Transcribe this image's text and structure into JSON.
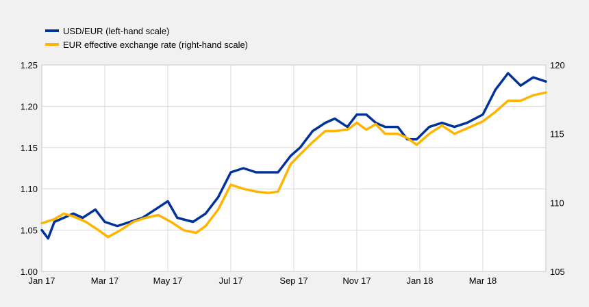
{
  "chart_data": {
    "type": "line",
    "title": "",
    "xlabel": "",
    "ylabel_left": "",
    "ylabel_right": "",
    "x_ticks": [
      "Jan 17",
      "Mar 17",
      "May 17",
      "Jul 17",
      "Sep 17",
      "Nov 17",
      "Jan 18",
      "Mar 18"
    ],
    "y_left": {
      "lim": [
        1.0,
        1.25
      ],
      "ticks": [
        "1.00",
        "1.05",
        "1.10",
        "1.15",
        "1.20",
        "1.25"
      ]
    },
    "y_right": {
      "lim": [
        105,
        120
      ],
      "ticks": [
        "105",
        "110",
        "115",
        "120"
      ]
    },
    "grid": true,
    "legend_position": "top-left",
    "x_range": [
      0,
      16
    ],
    "series": [
      {
        "name": "USD/EUR (left-hand scale)",
        "color": "#003299",
        "axis": "left",
        "points": [
          [
            0.0,
            1.05
          ],
          [
            0.2,
            1.04
          ],
          [
            0.4,
            1.06
          ],
          [
            0.7,
            1.065
          ],
          [
            1.0,
            1.07
          ],
          [
            1.3,
            1.065
          ],
          [
            1.7,
            1.075
          ],
          [
            2.0,
            1.06
          ],
          [
            2.4,
            1.055
          ],
          [
            2.8,
            1.06
          ],
          [
            3.2,
            1.065
          ],
          [
            3.6,
            1.075
          ],
          [
            4.0,
            1.085
          ],
          [
            4.3,
            1.065
          ],
          [
            4.8,
            1.06
          ],
          [
            5.2,
            1.07
          ],
          [
            5.6,
            1.09
          ],
          [
            6.0,
            1.12
          ],
          [
            6.4,
            1.125
          ],
          [
            6.8,
            1.12
          ],
          [
            7.2,
            1.12
          ],
          [
            7.5,
            1.12
          ],
          [
            7.9,
            1.14
          ],
          [
            8.2,
            1.15
          ],
          [
            8.6,
            1.17
          ],
          [
            9.0,
            1.18
          ],
          [
            9.3,
            1.185
          ],
          [
            9.7,
            1.175
          ],
          [
            10.0,
            1.19
          ],
          [
            10.3,
            1.19
          ],
          [
            10.6,
            1.18
          ],
          [
            10.9,
            1.175
          ],
          [
            11.3,
            1.175
          ],
          [
            11.6,
            1.16
          ],
          [
            11.9,
            1.16
          ],
          [
            12.3,
            1.175
          ],
          [
            12.7,
            1.18
          ],
          [
            13.1,
            1.175
          ],
          [
            13.5,
            1.18
          ],
          [
            14.0,
            1.19
          ],
          [
            14.4,
            1.22
          ],
          [
            14.8,
            1.24
          ],
          [
            15.2,
            1.225
          ],
          [
            15.6,
            1.235
          ],
          [
            16.0,
            1.23
          ]
        ]
      },
      {
        "name": "EUR effective exchange rate (right-hand scale)",
        "color": "#ffb400",
        "axis": "right",
        "points": [
          [
            0.0,
            108.5
          ],
          [
            0.4,
            108.8
          ],
          [
            0.7,
            109.2
          ],
          [
            1.0,
            109.0
          ],
          [
            1.4,
            108.6
          ],
          [
            1.8,
            108.0
          ],
          [
            2.1,
            107.5
          ],
          [
            2.5,
            108.0
          ],
          [
            2.9,
            108.6
          ],
          [
            3.3,
            108.9
          ],
          [
            3.7,
            109.1
          ],
          [
            4.1,
            108.6
          ],
          [
            4.5,
            108.0
          ],
          [
            4.9,
            107.8
          ],
          [
            5.2,
            108.3
          ],
          [
            5.6,
            109.5
          ],
          [
            6.0,
            111.3
          ],
          [
            6.4,
            111.0
          ],
          [
            6.8,
            110.8
          ],
          [
            7.2,
            110.7
          ],
          [
            7.5,
            110.8
          ],
          [
            7.9,
            112.8
          ],
          [
            8.2,
            113.5
          ],
          [
            8.6,
            114.4
          ],
          [
            9.0,
            115.2
          ],
          [
            9.3,
            115.2
          ],
          [
            9.7,
            115.3
          ],
          [
            10.0,
            115.8
          ],
          [
            10.3,
            115.3
          ],
          [
            10.6,
            115.7
          ],
          [
            10.9,
            115.0
          ],
          [
            11.3,
            115.0
          ],
          [
            11.6,
            114.7
          ],
          [
            11.9,
            114.2
          ],
          [
            12.3,
            115.0
          ],
          [
            12.7,
            115.6
          ],
          [
            13.1,
            115.0
          ],
          [
            13.5,
            115.4
          ],
          [
            14.0,
            115.9
          ],
          [
            14.4,
            116.6
          ],
          [
            14.8,
            117.4
          ],
          [
            15.2,
            117.4
          ],
          [
            15.6,
            117.8
          ],
          [
            16.0,
            118.0
          ]
        ]
      }
    ]
  }
}
